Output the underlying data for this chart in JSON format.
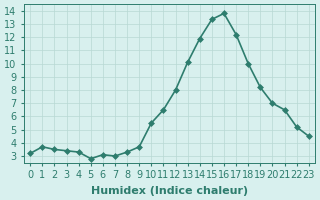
{
  "x": [
    0,
    1,
    2,
    3,
    4,
    5,
    6,
    7,
    8,
    9,
    10,
    11,
    12,
    13,
    14,
    15,
    16,
    17,
    18,
    19,
    20,
    21,
    22,
    23
  ],
  "y": [
    3.2,
    3.7,
    3.5,
    3.4,
    3.3,
    2.8,
    3.1,
    3.0,
    3.3,
    3.7,
    5.5,
    6.5,
    8.0,
    10.1,
    11.9,
    13.35,
    13.8,
    12.2,
    10.0,
    8.2,
    7.0,
    6.5,
    5.2,
    4.5
  ],
  "line_color": "#2e7d6e",
  "marker_color": "#2e7d6e",
  "bg_color": "#d8f0ee",
  "grid_color": "#b8d8d4",
  "xlabel": "Humidex (Indice chaleur)",
  "xlim": [
    -0.5,
    23.5
  ],
  "ylim": [
    2.5,
    14.5
  ],
  "yticks": [
    3,
    4,
    5,
    6,
    7,
    8,
    9,
    10,
    11,
    12,
    13,
    14
  ],
  "xticks": [
    0,
    1,
    2,
    3,
    4,
    5,
    6,
    7,
    8,
    9,
    10,
    11,
    12,
    13,
    14,
    15,
    16,
    17,
    18,
    19,
    20,
    21,
    22,
    23
  ],
  "xlabel_fontsize": 8,
  "tick_fontsize": 7,
  "marker_size": 3,
  "line_width": 1.2
}
